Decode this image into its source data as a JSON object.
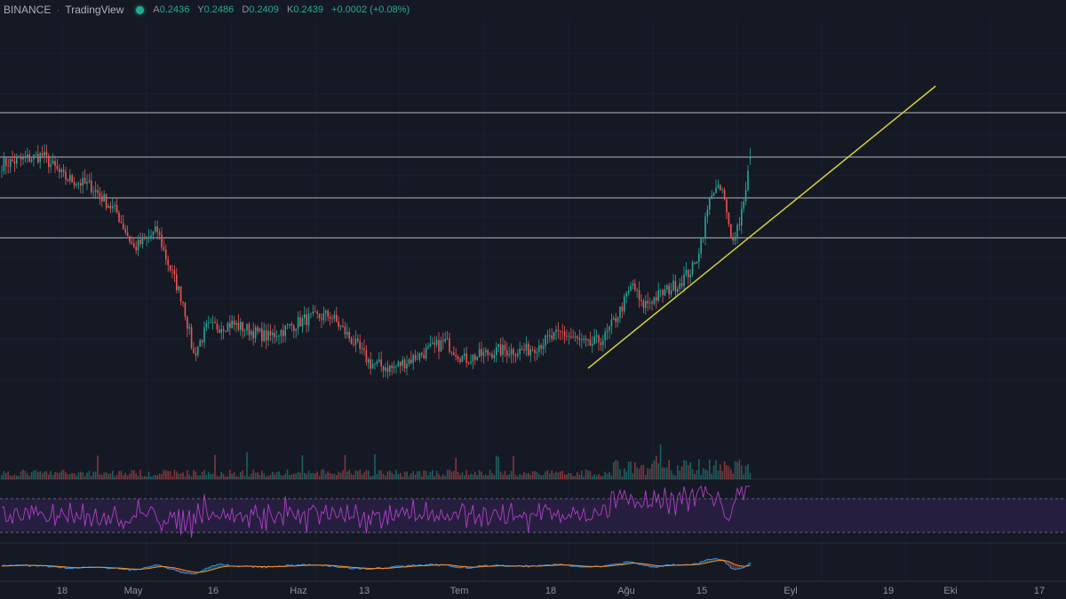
{
  "header": {
    "exchange": "BINANCE",
    "separator": "·",
    "provider": "TradingView",
    "ohlc": {
      "open_label": "A",
      "open": "0.2436",
      "high_label": "Y",
      "high": "0.2486",
      "low_label": "D",
      "low": "0.2409",
      "close_label": "K",
      "close": "0.2439",
      "change": "+0.0002 (+0.08%)"
    }
  },
  "colors": {
    "background": "#151924",
    "up": "#26a69a",
    "down": "#ef5350",
    "trendline": "#d4cf3a",
    "level": "#9598a1",
    "rsi": "#b03fc7",
    "rsi_band": "#2a1f45",
    "macd": "#2196f3",
    "signal": "#ff8a1e"
  },
  "x_axis": {
    "ticks": [
      "18",
      "May",
      "16",
      "Haz",
      "13",
      "Tem",
      "18",
      "Ağu",
      "15",
      "Eyl",
      "19",
      "Eki",
      "17"
    ]
  },
  "chart_data": {
    "type": "candlestick",
    "title": "",
    "key_closes": [
      {
        "t": 0,
        "p": 0.2412
      },
      {
        "t": 19,
        "p": 0.2452
      },
      {
        "t": 29,
        "p": 0.2352
      },
      {
        "t": 42,
        "p": 0.2312
      },
      {
        "t": 54,
        "p": 0.2192
      },
      {
        "t": 62,
        "p": 0.2032
      },
      {
        "t": 73,
        "p": 0.2112
      },
      {
        "t": 77,
        "p": 0.1992
      },
      {
        "t": 85,
        "p": 0.1792
      },
      {
        "t": 90,
        "p": 0.1552
      },
      {
        "t": 96,
        "p": 0.1672
      },
      {
        "t": 108,
        "p": 0.1692
      },
      {
        "t": 125,
        "p": 0.1632
      },
      {
        "t": 142,
        "p": 0.1712
      },
      {
        "t": 154,
        "p": 0.1732
      },
      {
        "t": 163,
        "p": 0.1632
      },
      {
        "t": 173,
        "p": 0.1512
      },
      {
        "t": 183,
        "p": 0.1492
      },
      {
        "t": 196,
        "p": 0.1552
      },
      {
        "t": 208,
        "p": 0.1612
      },
      {
        "t": 217,
        "p": 0.1532
      },
      {
        "t": 233,
        "p": 0.1572
      },
      {
        "t": 246,
        "p": 0.1572
      },
      {
        "t": 263,
        "p": 0.1652
      },
      {
        "t": 275,
        "p": 0.1592
      },
      {
        "t": 283,
        "p": 0.1632
      },
      {
        "t": 290,
        "p": 0.1752
      },
      {
        "t": 296,
        "p": 0.1872
      },
      {
        "t": 300,
        "p": 0.1772
      },
      {
        "t": 317,
        "p": 0.1872
      },
      {
        "t": 325,
        "p": 0.1952
      },
      {
        "t": 329,
        "p": 0.2112
      },
      {
        "t": 333,
        "p": 0.2292
      },
      {
        "t": 338,
        "p": 0.2292
      },
      {
        "t": 342,
        "p": 0.2072
      },
      {
        "t": 346,
        "p": 0.2152
      },
      {
        "t": 349,
        "p": 0.2312
      },
      {
        "t": 351,
        "p": 0.2439
      }
    ],
    "horizontal_levels": [
      0.2644,
      0.2444,
      0.226,
      0.208
    ],
    "trendline": [
      {
        "t": 275,
        "p": 0.1492
      },
      {
        "t": 438,
        "p": 0.2764
      }
    ],
    "rsi_bands": [
      70,
      30
    ],
    "last": {
      "open": 0.2436,
      "high": 0.2486,
      "low": 0.2409,
      "close": 0.2439
    }
  }
}
